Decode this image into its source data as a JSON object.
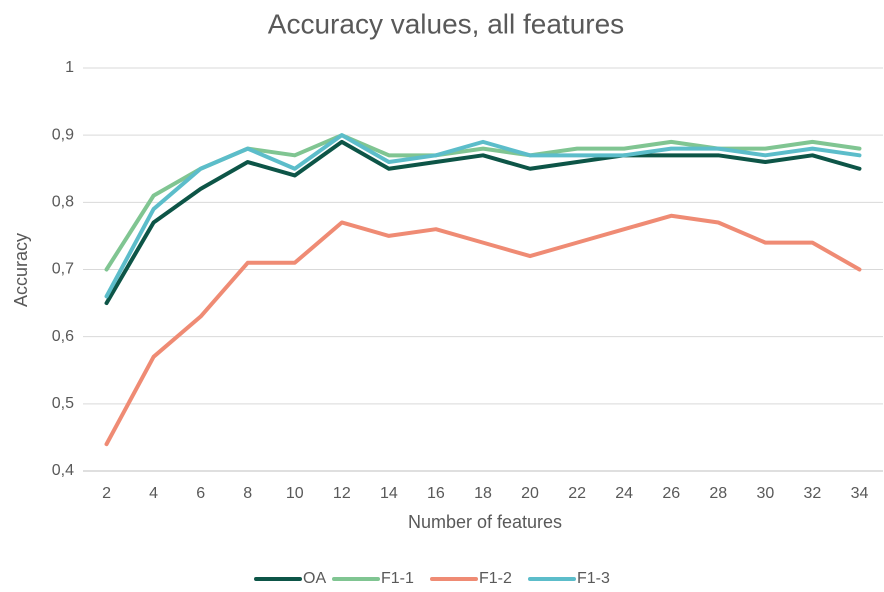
{
  "chart_data": {
    "type": "line",
    "title": "Accuracy values, all features",
    "x_label": "Number of features",
    "y_label": "Accuracy",
    "x": [
      2,
      4,
      6,
      8,
      10,
      12,
      14,
      16,
      18,
      20,
      22,
      24,
      26,
      28,
      30,
      32,
      34
    ],
    "xlim": [
      1,
      35
    ],
    "xticks": [
      2,
      4,
      6,
      8,
      10,
      12,
      14,
      16,
      18,
      20,
      22,
      24,
      26,
      28,
      30,
      32,
      34
    ],
    "ylim": [
      0.4,
      1
    ],
    "yticks": [
      {
        "value": 0.4,
        "label": "0,4"
      },
      {
        "value": 0.5,
        "label": "0,5"
      },
      {
        "value": 0.6,
        "label": "0,6"
      },
      {
        "value": 0.7,
        "label": "0,7"
      },
      {
        "value": 0.8,
        "label": "0,8"
      },
      {
        "value": 0.9,
        "label": "0,9"
      },
      1
    ],
    "grid": true,
    "legend": "bottom",
    "series": [
      {
        "name": "OA",
        "color": "#0d5547",
        "values": [
          0.65,
          0.77,
          0.82,
          0.86,
          0.84,
          0.89,
          0.85,
          0.86,
          0.87,
          0.85,
          0.86,
          0.87,
          0.87,
          0.87,
          0.86,
          0.87,
          0.85
        ]
      },
      {
        "name": "F1-1",
        "color": "#80c592",
        "values": [
          0.7,
          0.81,
          0.85,
          0.88,
          0.87,
          0.9,
          0.87,
          0.87,
          0.88,
          0.87,
          0.88,
          0.88,
          0.89,
          0.88,
          0.88,
          0.89,
          0.88
        ]
      },
      {
        "name": "F1-2",
        "color": "#ef8b74",
        "values": [
          0.44,
          0.57,
          0.63,
          0.71,
          0.71,
          0.77,
          0.75,
          0.76,
          0.74,
          0.72,
          0.74,
          0.76,
          0.78,
          0.77,
          0.74,
          0.74,
          0.7
        ]
      },
      {
        "name": "F1-3",
        "color": "#5cbdca",
        "values": [
          0.66,
          0.79,
          0.85,
          0.88,
          0.85,
          0.9,
          0.86,
          0.87,
          0.89,
          0.87,
          0.87,
          0.87,
          0.88,
          0.88,
          0.87,
          0.88,
          0.87
        ]
      }
    ]
  }
}
